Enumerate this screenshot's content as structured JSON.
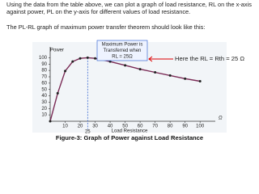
{
  "paragraph": "Using the data from the table above, we can plot a graph of load resistance, RL on the x-axis against power, PL on the y-axis for different values of load resistance.",
  "lead_in": "The PL-RL graph of maximum power transfer theorem should look like this:",
  "chart_data": {
    "type": "line",
    "y_label": "Power",
    "x_label": "Load Resistance",
    "x_unit": "Ω",
    "x": [
      0,
      5,
      10,
      15,
      20,
      25,
      30,
      40,
      50,
      60,
      70,
      80,
      90,
      100
    ],
    "series": [
      {
        "name": "Power",
        "color": "#7a2a55",
        "values": [
          0,
          44,
          79,
          94,
          99,
          100,
          99,
          94,
          88,
          82,
          77,
          72,
          67,
          63
        ]
      }
    ],
    "xlim": [
      0,
      108
    ],
    "ylim": [
      0,
      112
    ],
    "xticks": [
      10,
      20,
      30,
      40,
      50,
      60,
      70,
      80,
      90,
      100
    ],
    "yticks": [
      10,
      20,
      30,
      40,
      50,
      60,
      70,
      80,
      90,
      100
    ],
    "marker": 25,
    "annotation": [
      "Maximum Power is",
      "Transferred when",
      "RL = 25Ω"
    ],
    "callout": "Here the RL = Rth = 25 Ω"
  },
  "caption": "Figure-3: Graph of Power against Load Resistance"
}
